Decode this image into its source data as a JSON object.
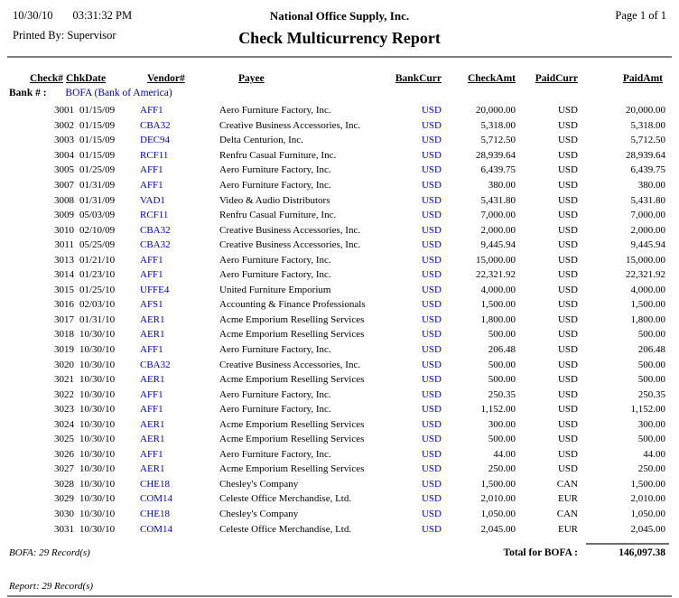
{
  "header": {
    "date": "10/30/10",
    "time": "03:31:32 PM",
    "company": "National Office Supply, Inc.",
    "page_label": "Page 1 of 1",
    "printed_by": "Printed By: Supervisor",
    "title": "Check Multicurrency Report"
  },
  "colors": {
    "link_blue": "#0000CC",
    "text": "#000000",
    "rule_gray": "#7f7f7f"
  },
  "table": {
    "bank_label": "Bank # :",
    "bank_value": "BOFA (Bank of America)",
    "headers": [
      "Check#",
      "ChkDate",
      "Vendor#",
      "Payee",
      "BankCurr",
      "CheckAmt",
      "PaidCurr",
      "PaidAmt"
    ],
    "row_keys": [
      "check_no",
      "chk_date",
      "vendor_no",
      "payee",
      "bank_curr",
      "check_amt",
      "paid_curr",
      "paid_amt"
    ],
    "rows": [
      {
        "check_no": "3001",
        "chk_date": "01/15/09",
        "vendor_no": "AFF1",
        "payee": "Aero Furniture Factory, Inc.",
        "bank_curr": "USD",
        "check_amt": "20,000.00",
        "paid_curr": "USD",
        "paid_amt": "20,000.00"
      },
      {
        "check_no": "3002",
        "chk_date": "01/15/09",
        "vendor_no": "CBA32",
        "payee": "Creative Business Accessories, Inc.",
        "bank_curr": "USD",
        "check_amt": "5,318.00",
        "paid_curr": "USD",
        "paid_amt": "5,318.00"
      },
      {
        "check_no": "3003",
        "chk_date": "01/15/09",
        "vendor_no": "DEC94",
        "payee": "Delta Centurion, Inc.",
        "bank_curr": "USD",
        "check_amt": "5,712.50",
        "paid_curr": "USD",
        "paid_amt": "5,712.50"
      },
      {
        "check_no": "3004",
        "chk_date": "01/15/09",
        "vendor_no": "RCF11",
        "payee": "Renfru Casual Furniture, Inc.",
        "bank_curr": "USD",
        "check_amt": "28,939.64",
        "paid_curr": "USD",
        "paid_amt": "28,939.64"
      },
      {
        "check_no": "3005",
        "chk_date": "01/25/09",
        "vendor_no": "AFF1",
        "payee": "Aero Furniture Factory, Inc.",
        "bank_curr": "USD",
        "check_amt": "6,439.75",
        "paid_curr": "USD",
        "paid_amt": "6,439.75"
      },
      {
        "check_no": "3007",
        "chk_date": "01/31/09",
        "vendor_no": "AFF1",
        "payee": "Aero Furniture Factory, Inc.",
        "bank_curr": "USD",
        "check_amt": "380.00",
        "paid_curr": "USD",
        "paid_amt": "380.00"
      },
      {
        "check_no": "3008",
        "chk_date": "01/31/09",
        "vendor_no": "VAD1",
        "payee": "Video & Audio Distributors",
        "bank_curr": "USD",
        "check_amt": "5,431.80",
        "paid_curr": "USD",
        "paid_amt": "5,431.80"
      },
      {
        "check_no": "3009",
        "chk_date": "05/03/09",
        "vendor_no": "RCF11",
        "payee": "Renfru Casual Furniture, Inc.",
        "bank_curr": "USD",
        "check_amt": "7,000.00",
        "paid_curr": "USD",
        "paid_amt": "7,000.00"
      },
      {
        "check_no": "3010",
        "chk_date": "02/10/09",
        "vendor_no": "CBA32",
        "payee": "Creative Business Accessories, Inc.",
        "bank_curr": "USD",
        "check_amt": "2,000.00",
        "paid_curr": "USD",
        "paid_amt": "2,000.00"
      },
      {
        "check_no": "3011",
        "chk_date": "05/25/09",
        "vendor_no": "CBA32",
        "payee": "Creative Business Accessories, Inc.",
        "bank_curr": "USD",
        "check_amt": "9,445.94",
        "paid_curr": "USD",
        "paid_amt": "9,445.94"
      },
      {
        "check_no": "3013",
        "chk_date": "01/21/10",
        "vendor_no": "AFF1",
        "payee": "Aero Furniture Factory, Inc.",
        "bank_curr": "USD",
        "check_amt": "15,000.00",
        "paid_curr": "USD",
        "paid_amt": "15,000.00"
      },
      {
        "check_no": "3014",
        "chk_date": "01/23/10",
        "vendor_no": "AFF1",
        "payee": "Aero Furniture Factory, Inc.",
        "bank_curr": "USD",
        "check_amt": "22,321.92",
        "paid_curr": "USD",
        "paid_amt": "22,321.92"
      },
      {
        "check_no": "3015",
        "chk_date": "01/25/10",
        "vendor_no": "UFFE4",
        "payee": "United Furniture Emporium",
        "bank_curr": "USD",
        "check_amt": "4,000.00",
        "paid_curr": "USD",
        "paid_amt": "4,000.00"
      },
      {
        "check_no": "3016",
        "chk_date": "02/03/10",
        "vendor_no": "AFS1",
        "payee": "Accounting & Finance Professionals",
        "bank_curr": "USD",
        "check_amt": "1,500.00",
        "paid_curr": "USD",
        "paid_amt": "1,500.00"
      },
      {
        "check_no": "3017",
        "chk_date": "01/31/10",
        "vendor_no": "AER1",
        "payee": "Acme Emporium Reselling Services",
        "bank_curr": "USD",
        "check_amt": "1,800.00",
        "paid_curr": "USD",
        "paid_amt": "1,800.00"
      },
      {
        "check_no": "3018",
        "chk_date": "10/30/10",
        "vendor_no": "AER1",
        "payee": "Acme Emporium Reselling Services",
        "bank_curr": "USD",
        "check_amt": "500.00",
        "paid_curr": "USD",
        "paid_amt": "500.00"
      },
      {
        "check_no": "3019",
        "chk_date": "10/30/10",
        "vendor_no": "AFF1",
        "payee": "Aero Furniture Factory, Inc.",
        "bank_curr": "USD",
        "check_amt": "206.48",
        "paid_curr": "USD",
        "paid_amt": "206.48"
      },
      {
        "check_no": "3020",
        "chk_date": "10/30/10",
        "vendor_no": "CBA32",
        "payee": "Creative Business Accessories, Inc.",
        "bank_curr": "USD",
        "check_amt": "500.00",
        "paid_curr": "USD",
        "paid_amt": "500.00"
      },
      {
        "check_no": "3021",
        "chk_date": "10/30/10",
        "vendor_no": "AER1",
        "payee": "Acme Emporium Reselling Services",
        "bank_curr": "USD",
        "check_amt": "500.00",
        "paid_curr": "USD",
        "paid_amt": "500.00"
      },
      {
        "check_no": "3022",
        "chk_date": "10/30/10",
        "vendor_no": "AFF1",
        "payee": "Aero Furniture Factory, Inc.",
        "bank_curr": "USD",
        "check_amt": "250.35",
        "paid_curr": "USD",
        "paid_amt": "250.35"
      },
      {
        "check_no": "3023",
        "chk_date": "10/30/10",
        "vendor_no": "AFF1",
        "payee": "Aero Furniture Factory, Inc.",
        "bank_curr": "USD",
        "check_amt": "1,152.00",
        "paid_curr": "USD",
        "paid_amt": "1,152.00"
      },
      {
        "check_no": "3024",
        "chk_date": "10/30/10",
        "vendor_no": "AER1",
        "payee": "Acme Emporium Reselling Services",
        "bank_curr": "USD",
        "check_amt": "300.00",
        "paid_curr": "USD",
        "paid_amt": "300.00"
      },
      {
        "check_no": "3025",
        "chk_date": "10/30/10",
        "vendor_no": "AER1",
        "payee": "Acme Emporium Reselling Services",
        "bank_curr": "USD",
        "check_amt": "500.00",
        "paid_curr": "USD",
        "paid_amt": "500.00"
      },
      {
        "check_no": "3026",
        "chk_date": "10/30/10",
        "vendor_no": "AFF1",
        "payee": "Aero Furniture Factory, Inc.",
        "bank_curr": "USD",
        "check_amt": "44.00",
        "paid_curr": "USD",
        "paid_amt": "44.00"
      },
      {
        "check_no": "3027",
        "chk_date": "10/30/10",
        "vendor_no": "AER1",
        "payee": "Acme Emporium Reselling Services",
        "bank_curr": "USD",
        "check_amt": "250.00",
        "paid_curr": "USD",
        "paid_amt": "250.00"
      },
      {
        "check_no": "3028",
        "chk_date": "10/30/10",
        "vendor_no": "CHE18",
        "payee": "Chesley's Company",
        "bank_curr": "USD",
        "check_amt": "1,500.00",
        "paid_curr": "CAN",
        "paid_amt": "1,500.00"
      },
      {
        "check_no": "3029",
        "chk_date": "10/30/10",
        "vendor_no": "COM14",
        "payee": "Celeste Office Merchandise, Ltd.",
        "bank_curr": "USD",
        "check_amt": "2,010.00",
        "paid_curr": "EUR",
        "paid_amt": "2,010.00"
      },
      {
        "check_no": "3030",
        "chk_date": "10/30/10",
        "vendor_no": "CHE18",
        "payee": "Chesley's Company",
        "bank_curr": "USD",
        "check_amt": "1,050.00",
        "paid_curr": "CAN",
        "paid_amt": "1,050.00"
      },
      {
        "check_no": "3031",
        "chk_date": "10/30/10",
        "vendor_no": "COM14",
        "payee": "Celeste Office Merchandise, Ltd.",
        "bank_curr": "USD",
        "check_amt": "2,045.00",
        "paid_curr": "EUR",
        "paid_amt": "2,045.00"
      }
    ]
  },
  "footer": {
    "bank_records": "BOFA: 29 Record(s)",
    "total_label": "Total for BOFA :",
    "total_value": "146,097.38",
    "report_records": "Report: 29 Record(s)"
  }
}
